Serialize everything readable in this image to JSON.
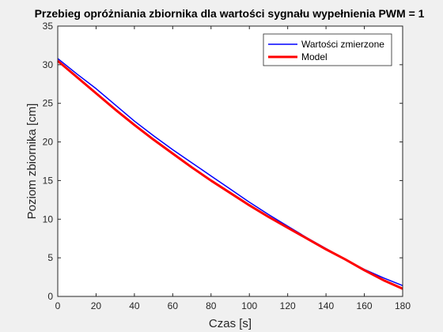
{
  "chart_data": {
    "type": "line",
    "title": "Przebieg opróżniania zbiornika dla wartości sygnału wypełnienia PWM = 1",
    "xlabel": "Czas [s]",
    "ylabel": "Poziom zbiornika [cm]",
    "xlim": [
      0,
      180
    ],
    "ylim": [
      0,
      35
    ],
    "xticks": [
      0,
      20,
      40,
      60,
      80,
      100,
      120,
      140,
      160,
      180
    ],
    "yticks": [
      0,
      5,
      10,
      15,
      20,
      25,
      30,
      35
    ],
    "grid": false,
    "legend_position": "top-right",
    "series": [
      {
        "name": "Wartości zmierzone",
        "color": "#0000ff",
        "x": [
          0,
          10,
          20,
          30,
          40,
          50,
          60,
          70,
          80,
          90,
          100,
          110,
          120,
          130,
          140,
          150,
          160,
          170,
          180
        ],
        "y": [
          30.8,
          28.8,
          26.9,
          24.8,
          22.7,
          20.8,
          19.0,
          17.3,
          15.6,
          13.9,
          12.2,
          10.6,
          9.1,
          7.6,
          6.2,
          4.8,
          3.5,
          2.4,
          1.4
        ]
      },
      {
        "name": "Model",
        "color": "#ff0000",
        "x": [
          0,
          10,
          20,
          30,
          40,
          50,
          60,
          70,
          80,
          90,
          100,
          110,
          120,
          130,
          140,
          150,
          160,
          170,
          180
        ],
        "y": [
          30.5,
          28.4,
          26.3,
          24.2,
          22.2,
          20.3,
          18.5,
          16.7,
          15.0,
          13.4,
          11.8,
          10.3,
          8.9,
          7.5,
          6.1,
          4.8,
          3.4,
          2.1,
          1.0
        ]
      }
    ]
  }
}
